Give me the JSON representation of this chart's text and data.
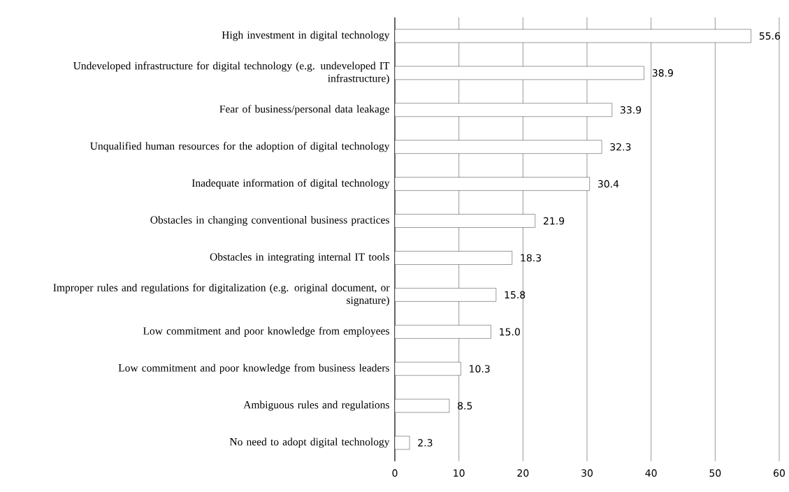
{
  "chart_data": {
    "type": "bar",
    "orientation": "horizontal",
    "categories": [
      "High investment in digital technology",
      "Undeveloped infrastructure for digital technology (e.g. undeveloped IT infrastructure)",
      "Fear of business/personal data leakage",
      "Unqualified human resources for the adoption of digital technology",
      "Inadequate information of digital technology",
      "Obstacles in changing conventional business practices",
      "Obstacles in integrating internal IT tools",
      "Improper rules and regulations for digitalization (e.g. original document, or signature)",
      "Low commitment and poor knowledge from employees",
      "Low commitment and poor knowledge from business leaders",
      "Ambiguous rules and regulations",
      "No need to adopt digital technology"
    ],
    "values": [
      55.6,
      38.9,
      33.9,
      32.3,
      30.4,
      21.9,
      18.3,
      15.8,
      15.0,
      10.3,
      8.5,
      2.3
    ],
    "value_labels": [
      "55.6",
      "38.9",
      "33.9",
      "32.3",
      "30.4",
      "21.9",
      "18.3",
      "15.8",
      "15.0",
      "10.3",
      "8.5",
      "2.3"
    ],
    "color": "#ffffff",
    "xlim": [
      0,
      60
    ],
    "xticks": [
      0,
      10,
      20,
      30,
      40,
      50,
      60
    ],
    "grid": "x"
  }
}
